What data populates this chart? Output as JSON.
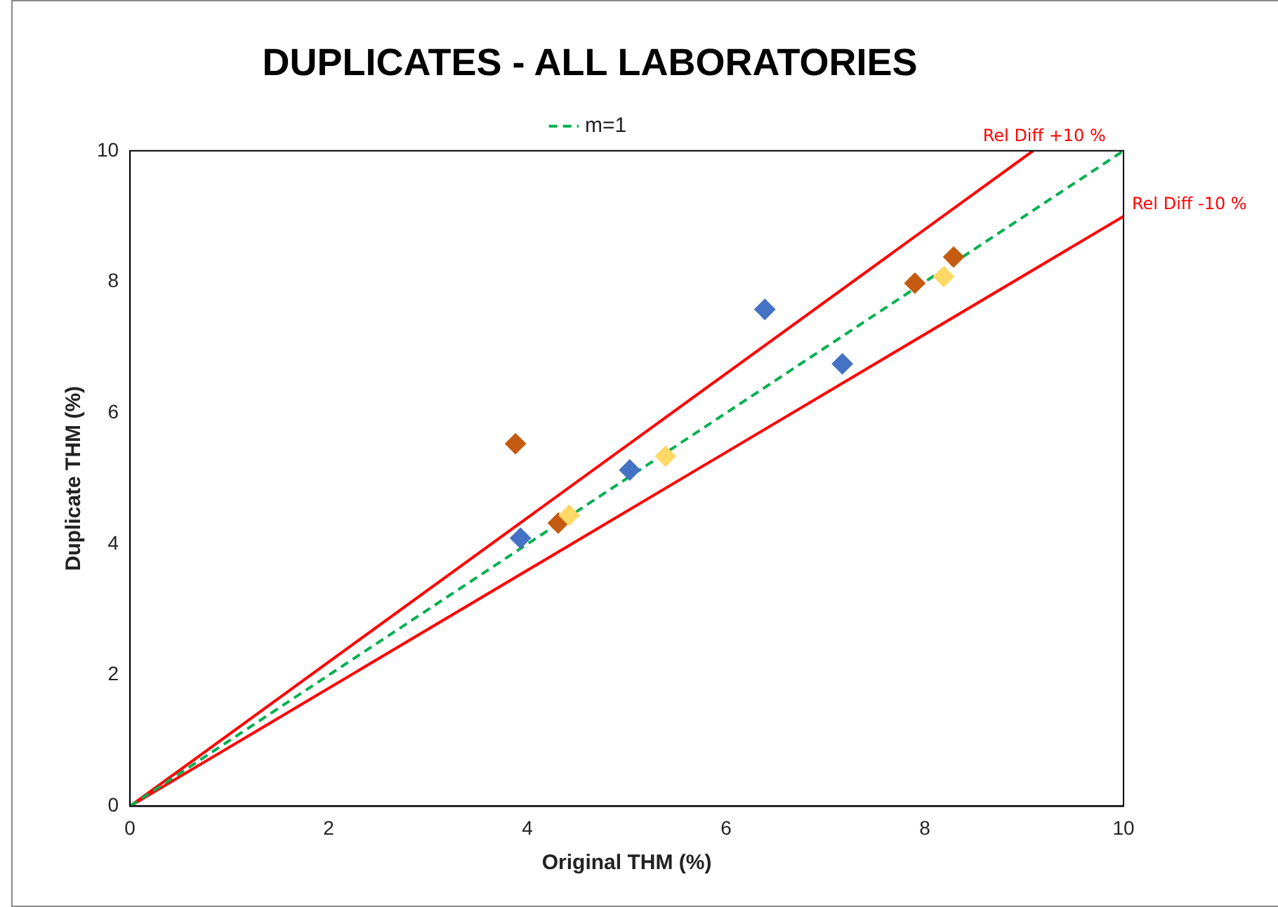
{
  "chart_data": {
    "type": "scatter",
    "title": "DUPLICATES - ALL LABORATORIES",
    "xlabel": "Original THM (%)",
    "ylabel": "Duplicate THM (%)",
    "xlim": [
      0,
      10
    ],
    "ylim": [
      0,
      10
    ],
    "xticks": [
      0,
      2,
      4,
      6,
      8,
      10
    ],
    "yticks": [
      0,
      2,
      4,
      6,
      8,
      10
    ],
    "grid": false,
    "legend": "top",
    "marker": "diamond",
    "series": [
      {
        "color": "#4472c4",
        "x": [
          3.93,
          5.03,
          6.39,
          7.17
        ],
        "values": [
          4.09,
          5.13,
          7.58,
          6.75
        ]
      },
      {
        "color": "#ffd966",
        "x": [
          4.42,
          5.39,
          8.19
        ],
        "values": [
          4.44,
          5.34,
          8.08
        ]
      },
      {
        "color": "#c55a11",
        "x": [
          3.88,
          4.31,
          7.9,
          8.29
        ],
        "values": [
          5.53,
          4.32,
          7.98,
          8.38
        ]
      },
      {
        "name": "m=1",
        "type": "line",
        "color": "#00b050",
        "line_style": "dashed",
        "marker": "none",
        "x": [
          0,
          10
        ],
        "values": [
          0,
          10
        ]
      },
      {
        "type": "line",
        "color": "#ff0000",
        "line_style": "solid",
        "marker": "none",
        "x": [
          0,
          9.09
        ],
        "values": [
          0,
          10
        ]
      },
      {
        "type": "line",
        "color": "#ff0000",
        "line_style": "solid",
        "marker": "none",
        "x": [
          0,
          10
        ],
        "values": [
          0,
          9
        ]
      }
    ],
    "annotations": [
      {
        "text": "Rel Diff +10 %",
        "x": 9.09,
        "y": 10
      },
      {
        "text": "Rel Diff -10 %",
        "x": 10,
        "y": 9
      }
    ]
  }
}
